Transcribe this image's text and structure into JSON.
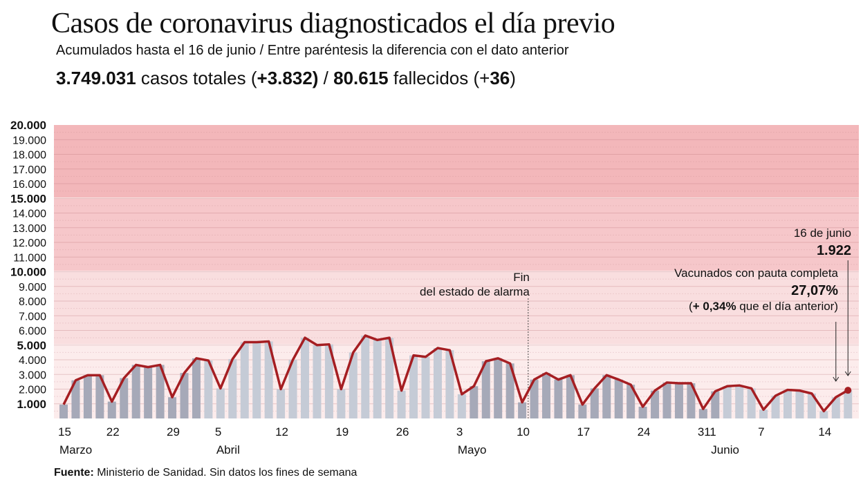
{
  "header": {
    "title": "Casos de coronavirus diagnosticados el día previo",
    "subtitle": "Acumulados hasta el 16 de junio / Entre paréntesis la diferencia con el dato anterior",
    "totals": {
      "cases_total": "3.749.031",
      "cases_label": " casos totales (",
      "cases_diff": "+3.832)",
      "sep": " / ",
      "deaths_total": "80.615",
      "deaths_label": " fallecidos (+",
      "deaths_diff": "36",
      "close": ")"
    }
  },
  "footer": {
    "source_label": "Fuente:",
    "source_text": " Ministerio de Sanidad. Sin datos los fines de semana"
  },
  "colors": {
    "line": "#a51e22",
    "bar_dark": "#a6a9b8",
    "bar_light": "#c5cbd6",
    "band_high": "#f3b7ba",
    "band_mid": "#f6c7ca",
    "band_low": "#f9dedf",
    "band_base": "#fcecec"
  },
  "chart_data": {
    "type": "bar",
    "title": "Casos de coronavirus diagnosticados el día previo",
    "xlabel": "",
    "ylabel": "",
    "ylim": [
      0,
      20000
    ],
    "grid": true,
    "y_ticks": [
      {
        "value": 1000,
        "label": "1.000",
        "major": true
      },
      {
        "value": 2000,
        "label": "2.000",
        "major": false
      },
      {
        "value": 3000,
        "label": "3.000",
        "major": false
      },
      {
        "value": 4000,
        "label": "4.000",
        "major": false
      },
      {
        "value": 5000,
        "label": "5.000",
        "major": true
      },
      {
        "value": 6000,
        "label": "6.000",
        "major": false
      },
      {
        "value": 7000,
        "label": "7.000",
        "major": false
      },
      {
        "value": 8000,
        "label": "8.000",
        "major": false
      },
      {
        "value": 9000,
        "label": "9.000",
        "major": false
      },
      {
        "value": 10000,
        "label": "10.000",
        "major": true
      },
      {
        "value": 11000,
        "label": "11.000",
        "major": false
      },
      {
        "value": 12000,
        "label": "12.000",
        "major": false
      },
      {
        "value": 13000,
        "label": "13.000",
        "major": false
      },
      {
        "value": 14000,
        "label": "14.000",
        "major": false
      },
      {
        "value": 15000,
        "label": "15.000",
        "major": true
      },
      {
        "value": 16000,
        "label": "16.000",
        "major": false
      },
      {
        "value": 17000,
        "label": "17.000",
        "major": false
      },
      {
        "value": 18000,
        "label": "18.000",
        "major": false
      },
      {
        "value": 19000,
        "label": "19.000",
        "major": false
      },
      {
        "value": 20000,
        "label": "20.000",
        "major": true
      }
    ],
    "bands": [
      {
        "from": 0,
        "to": 5000,
        "level": "base"
      },
      {
        "from": 5000,
        "to": 10000,
        "level": "low"
      },
      {
        "from": 10000,
        "to": 15000,
        "level": "mid"
      },
      {
        "from": 15000,
        "to": 20000,
        "level": "high"
      }
    ],
    "categories": [
      "16 mar",
      "17 mar",
      "18 mar",
      "19 mar",
      "20 mar",
      "23 mar",
      "24 mar",
      "25 mar",
      "26 mar",
      "27 mar",
      "30 mar",
      "31 mar",
      "1 abr",
      "2 abr",
      "3 abr",
      "6 abr",
      "7 abr",
      "8 abr",
      "9 abr",
      "10 abr",
      "13 abr",
      "14 abr",
      "15 abr",
      "16 abr",
      "17 abr",
      "20 abr",
      "21 abr",
      "22 abr",
      "23 abr",
      "24 abr",
      "27 abr",
      "28 abr",
      "29 abr",
      "30 abr",
      "3 may",
      "4 may",
      "5 may",
      "6 may",
      "7 may",
      "10 may",
      "11 may",
      "12 may",
      "13 may",
      "14 may",
      "17 may",
      "18 may",
      "19 may",
      "20 may",
      "21 may",
      "24 may",
      "25 may",
      "26 may",
      "27 may",
      "28 may",
      "31 may",
      "1 jun",
      "2 jun",
      "3 jun",
      "4 jun",
      "7 jun",
      "8 jun",
      "9 jun",
      "10 jun",
      "11 jun",
      "14 jun",
      "16 jun"
    ],
    "month_group": [
      0,
      0,
      0,
      0,
      0,
      0,
      0,
      0,
      0,
      0,
      0,
      0,
      1,
      1,
      1,
      1,
      1,
      1,
      1,
      1,
      1,
      1,
      1,
      1,
      1,
      1,
      1,
      1,
      1,
      1,
      1,
      1,
      1,
      1,
      0,
      0,
      0,
      0,
      0,
      0,
      0,
      0,
      0,
      0,
      0,
      0,
      0,
      0,
      0,
      0,
      0,
      0,
      0,
      0,
      0,
      1,
      1,
      1,
      1,
      1,
      1,
      1,
      1,
      1,
      1,
      1
    ],
    "series": [
      {
        "name": "Casos diarios",
        "values": [
          950,
          2600,
          2950,
          2950,
          1150,
          2750,
          3650,
          3500,
          3650,
          1450,
          3100,
          4100,
          3950,
          2050,
          4050,
          5200,
          5200,
          5250,
          2000,
          4000,
          5500,
          5000,
          5050,
          2000,
          4500,
          5650,
          5350,
          5500,
          1900,
          4300,
          4200,
          4800,
          4650,
          1650,
          2200,
          3900,
          4100,
          3750,
          1100,
          2650,
          3100,
          2650,
          2950,
          950,
          2050,
          2950,
          2650,
          2300,
          800,
          1900,
          2450,
          2400,
          2400,
          650,
          1850,
          2200,
          2250,
          2050,
          600,
          1550,
          1950,
          1900,
          1700,
          500,
          1450,
          1922
        ]
      }
    ],
    "x_tick_labels": [
      {
        "index": 0,
        "label": "15"
      },
      {
        "index": 4,
        "label": "22"
      },
      {
        "index": 9,
        "label": "29"
      },
      {
        "index": 13,
        "label": "5"
      },
      {
        "index": 18,
        "label": "12"
      },
      {
        "index": 23,
        "label": "19"
      },
      {
        "index": 28,
        "label": "26"
      },
      {
        "index": 33,
        "label": "3"
      },
      {
        "index": 38,
        "label": "10"
      },
      {
        "index": 43,
        "label": "17"
      },
      {
        "index": 48,
        "label": "24"
      },
      {
        "index": 53,
        "label": "31"
      },
      {
        "index": 54,
        "label": "1"
      },
      {
        "index": 58,
        "label": "7"
      },
      {
        "index": 63,
        "label": "14"
      }
    ],
    "month_labels": [
      {
        "index": 0,
        "label": "Marzo"
      },
      {
        "index": 13,
        "label": "Abril"
      },
      {
        "index": 33,
        "label": "Mayo"
      },
      {
        "index": 54,
        "label": "Junio"
      }
    ],
    "annotations": {
      "alarm_end": {
        "index": 38.5,
        "line1": "Fin",
        "line2": "del estado de alarma"
      },
      "last_date": "16 de junio",
      "last_value": "1.922",
      "vaccinated_label": "Vacunados con pauta completa",
      "vaccinated_value": "27,07%",
      "vaccinated_diff_open": "(",
      "vaccinated_diff": "+ 0,34%",
      "vaccinated_diff_rest": " que el día anterior)"
    }
  }
}
